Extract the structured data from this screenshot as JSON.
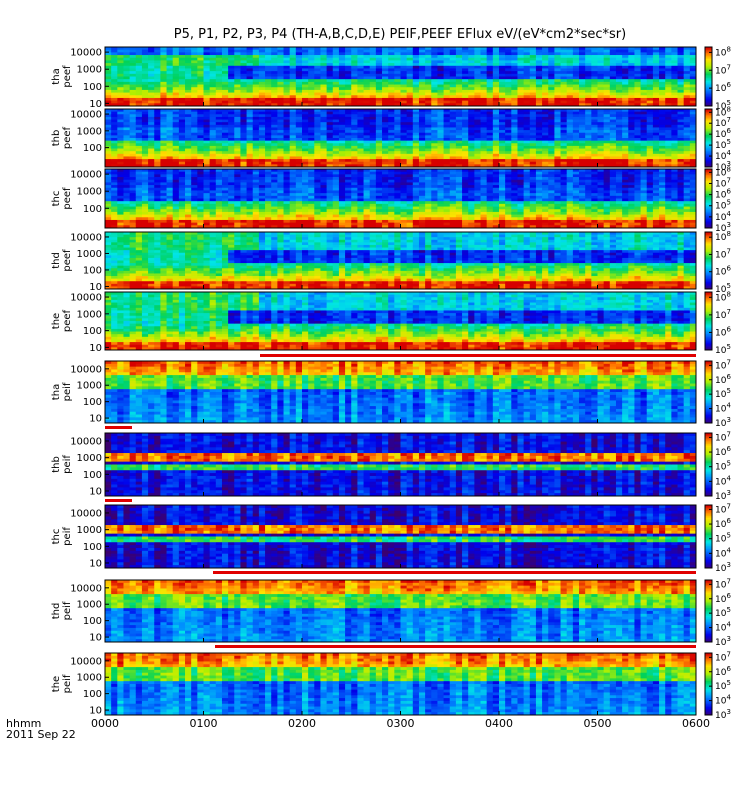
{
  "figure": {
    "title": "P5, P1, P2, P3, P4 (TH-A,B,C,D,E) PEIF,PEEF EFlux eV/(eV*cm2*sec*sr)",
    "time_axis_label": "hhmm",
    "date_label": "2011 Sep 22"
  },
  "chart_data": {
    "type": "heatmap",
    "title": "P5, P1, P2, P3, P4 (TH-A,B,C,D,E) PEIF,PEEF EFlux eV/(eV*cm2*sec*sr)",
    "x_ticks": [
      "0000",
      "0100",
      "0200",
      "0300",
      "0400",
      "0500",
      "0600"
    ],
    "x_range": [
      "0000",
      "0600"
    ],
    "yscale": "log",
    "colormap": "rainbow",
    "panels": [
      {
        "name": "tha peef",
        "ylabel": [
          "tha",
          "peef"
        ],
        "y_ticks": [
          "10000",
          "1000",
          "100",
          "10"
        ],
        "y_range": [
          7,
          20000
        ],
        "color_ticks": [
          "10^8",
          "10^7",
          "10^6",
          "10^5"
        ],
        "color_range": [
          100000,
          200000000
        ]
      },
      {
        "name": "thb peef",
        "ylabel": [
          "thb",
          "peef"
        ],
        "y_ticks": [
          "10000",
          "1000",
          "100"
        ],
        "y_range": [
          7,
          20000
        ],
        "color_ticks": [
          "10^8",
          "10^7",
          "10^6",
          "10^5",
          "10^4",
          "10^3"
        ],
        "color_range": [
          1000,
          200000000
        ]
      },
      {
        "name": "thc peef",
        "ylabel": [
          "thc",
          "peef"
        ],
        "y_ticks": [
          "10000",
          "1000",
          "100"
        ],
        "y_range": [
          7,
          20000
        ],
        "color_ticks": [
          "10^8",
          "10^7",
          "10^6",
          "10^5",
          "10^4",
          "10^3"
        ],
        "color_range": [
          1000,
          200000000
        ]
      },
      {
        "name": "thd peef",
        "ylabel": [
          "thd",
          "peef"
        ],
        "y_ticks": [
          "10000",
          "1000",
          "100",
          "10"
        ],
        "y_range": [
          7,
          20000
        ],
        "color_ticks": [
          "10^8",
          "10^7",
          "10^6",
          "10^5"
        ],
        "color_range": [
          100000,
          200000000
        ]
      },
      {
        "name": "the peef",
        "ylabel": [
          "the",
          "peef"
        ],
        "y_ticks": [
          "10000",
          "1000",
          "100",
          "10"
        ],
        "y_range": [
          7,
          20000
        ],
        "color_ticks": [
          "10^8",
          "10^7",
          "10^6",
          "10^5"
        ],
        "color_range": [
          100000,
          200000000
        ]
      },
      {
        "name": "tha peif",
        "ylabel": [
          "tha",
          "peif"
        ],
        "y_ticks": [
          "10000",
          "1000",
          "100",
          "10"
        ],
        "y_range": [
          5,
          30000
        ],
        "color_ticks": [
          "10^7",
          "10^6",
          "10^5",
          "10^4",
          "10^3"
        ],
        "color_range": [
          1000,
          20000000
        ]
      },
      {
        "name": "thb peif",
        "ylabel": [
          "thb",
          "peif"
        ],
        "y_ticks": [
          "10000",
          "1000",
          "100",
          "10"
        ],
        "y_range": [
          5,
          30000
        ],
        "color_ticks": [
          "10^7",
          "10^6",
          "10^5",
          "10^4",
          "10^3"
        ],
        "color_range": [
          1000,
          20000000
        ]
      },
      {
        "name": "thc peif",
        "ylabel": [
          "thc",
          "peif"
        ],
        "y_ticks": [
          "10000",
          "1000",
          "100",
          "10"
        ],
        "y_range": [
          5,
          30000
        ],
        "color_ticks": [
          "10^7",
          "10^6",
          "10^5",
          "10^4",
          "10^3"
        ],
        "color_range": [
          1000,
          20000000
        ]
      },
      {
        "name": "thd peif",
        "ylabel": [
          "thd",
          "peif"
        ],
        "y_ticks": [
          "10000",
          "1000",
          "100",
          "10"
        ],
        "y_range": [
          5,
          30000
        ],
        "color_ticks": [
          "10^7",
          "10^6",
          "10^5",
          "10^4",
          "10^3"
        ],
        "color_range": [
          1000,
          20000000
        ]
      },
      {
        "name": "the peif",
        "ylabel": [
          "the",
          "peif"
        ],
        "y_ticks": [
          "10000",
          "1000",
          "100",
          "10"
        ],
        "y_range": [
          5,
          30000
        ],
        "color_ticks": [
          "10^7",
          "10^6",
          "10^5",
          "10^4",
          "10^3"
        ],
        "color_range": [
          1000,
          20000000
        ]
      }
    ]
  }
}
